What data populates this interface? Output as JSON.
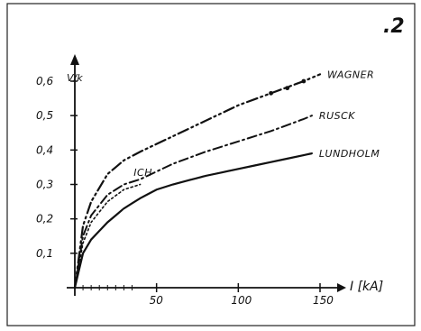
{
  "figure": {
    "number": ".2"
  },
  "chart_data": {
    "type": "line",
    "title": "",
    "xlabel": "I [kA]",
    "ylabel": "V/k",
    "xlim": [
      0,
      180
    ],
    "ylim": [
      0,
      0.7
    ],
    "x_ticks": [
      {
        "value": 50,
        "label": "50"
      },
      {
        "value": 100,
        "label": "100"
      },
      {
        "value": 150,
        "label": "150"
      }
    ],
    "y_ticks": [
      {
        "value": 0.1,
        "label": "0,1"
      },
      {
        "value": 0.2,
        "label": "0,2"
      },
      {
        "value": 0.3,
        "label": "0,3"
      },
      {
        "value": 0.4,
        "label": "0,4"
      },
      {
        "value": 0.5,
        "label": "0,5"
      },
      {
        "value": 0.6,
        "label": "0,6"
      }
    ],
    "series": [
      {
        "name": "WAGNER",
        "style": "dash-dot-dot",
        "x": [
          0,
          5,
          10,
          20,
          30,
          40,
          60,
          80,
          100,
          120,
          140,
          150
        ],
        "y": [
          0.0,
          0.18,
          0.25,
          0.33,
          0.37,
          0.395,
          0.44,
          0.485,
          0.53,
          0.565,
          0.6,
          0.62
        ]
      },
      {
        "name": "RUSCK",
        "style": "dash-dot",
        "x": [
          0,
          5,
          10,
          20,
          30,
          40,
          60,
          80,
          100,
          120,
          140,
          145
        ],
        "y": [
          0.0,
          0.15,
          0.21,
          0.27,
          0.3,
          0.315,
          0.36,
          0.395,
          0.425,
          0.455,
          0.49,
          0.5
        ]
      },
      {
        "name": "LUNDHOLM",
        "style": "solid",
        "x": [
          0,
          5,
          10,
          20,
          30,
          40,
          50,
          60,
          80,
          100,
          120,
          140,
          145
        ],
        "y": [
          0.0,
          0.1,
          0.14,
          0.19,
          0.23,
          0.26,
          0.285,
          0.3,
          0.325,
          0.345,
          0.365,
          0.385,
          0.39
        ]
      },
      {
        "name": "ICH",
        "style": "dotted",
        "x": [
          0,
          5,
          10,
          20,
          30,
          40
        ],
        "y": [
          0.0,
          0.13,
          0.19,
          0.25,
          0.285,
          0.3
        ]
      }
    ]
  }
}
